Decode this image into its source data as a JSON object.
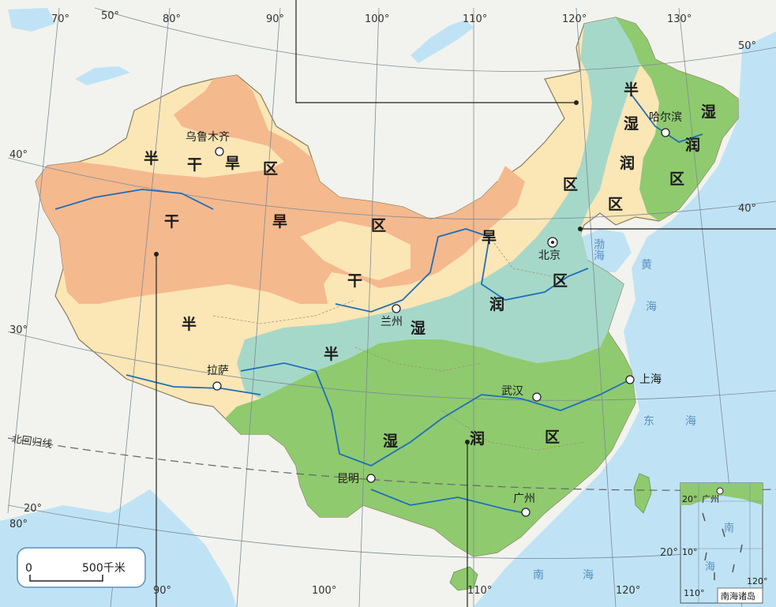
{
  "colors": {
    "sea": "#bfe3f5",
    "foreign_land": "#f2f3ee",
    "arid": "#f5b98e",
    "semi_arid": "#fbe6b6",
    "semi_humid": "#a6d8c9",
    "humid": "#8fca6f",
    "rivers": "#1f6fb8",
    "graticule": "#7d8b96"
  },
  "regions": {
    "arid": {
      "chars": [
        "干",
        "旱",
        "区",
        "干",
        "旱"
      ]
    },
    "semi_arid": {
      "chars": [
        "半",
        "干",
        "旱",
        "区",
        "半",
        "干"
      ]
    },
    "semi_humid": {
      "chars": [
        "半",
        "湿",
        "润",
        "区",
        "区",
        "润",
        "区",
        "湿",
        "半"
      ]
    },
    "humid": {
      "chars": [
        "湿",
        "润",
        "区",
        "湿",
        "润",
        "区"
      ]
    }
  },
  "cities": {
    "urumqi": "乌鲁木齐",
    "harbin": "哈尔滨",
    "beijing": "北京",
    "lanzhou": "兰州",
    "lhasa": "拉萨",
    "shanghai": "上海",
    "wuhan": "武汉",
    "kunming": "昆明",
    "guangzhou": "广州"
  },
  "seas": {
    "bohai": "渤海",
    "yellow_a": "黄",
    "yellow_b": "海",
    "east_a": "东",
    "east_b": "海",
    "south_a": "南",
    "south_b": "海"
  },
  "graticule": {
    "lon": [
      "70°",
      "80°",
      "90°",
      "100°",
      "110°",
      "120°",
      "130°",
      "50°"
    ],
    "lat": [
      "40°",
      "30°",
      "20°",
      "20°",
      "40°",
      "50°"
    ],
    "bottom": [
      "90°",
      "100°",
      "110°",
      "120°"
    ],
    "left_80": "80°",
    "left_20": "20°",
    "tropic": "北回归线"
  },
  "scale": {
    "zero": "0",
    "label": "500千米"
  },
  "inset": {
    "title": "南海诸岛",
    "city": "广州",
    "lat20": "20°",
    "lat10": "10°",
    "lon110": "110°",
    "lon120": "120°",
    "sea_a": "南",
    "sea_b": "海"
  }
}
